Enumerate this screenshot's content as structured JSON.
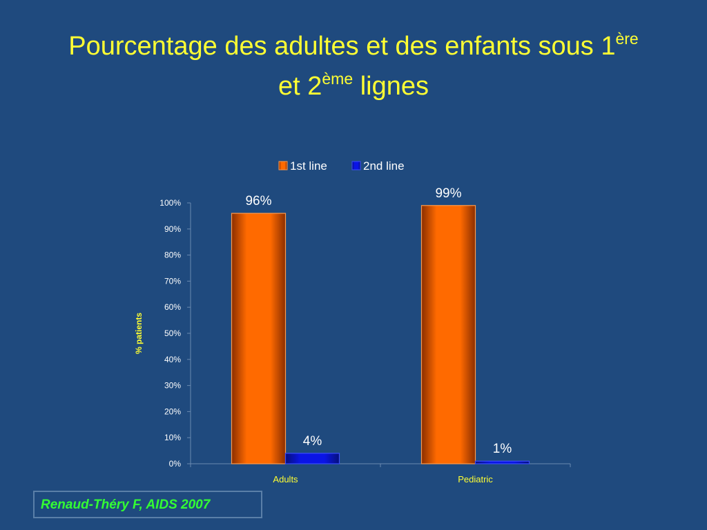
{
  "slide": {
    "title_part1": "Pourcentage des adultes et des enfants sous 1",
    "title_sup1": "ère",
    "title_part2": "et 2",
    "title_sup2": "ème",
    "title_part3": " lignes",
    "citation": "Renaud-Théry F, AIDS 2007"
  },
  "colors": {
    "background": "#1f4a7e",
    "title": "#ffff33",
    "citation": "#33ff33",
    "series_1st": "#ff6a00",
    "series_2nd": "#0a14e6",
    "axis_label": "#ffff33",
    "category_label": "#ffff33",
    "tick_label": "#ffffff"
  },
  "chart_data": {
    "type": "bar",
    "categories": [
      "Adults",
      "Pediatric"
    ],
    "series": [
      {
        "name": "1st line",
        "values": [
          96,
          99
        ],
        "labels": [
          "96%",
          "99%"
        ]
      },
      {
        "name": "2nd line",
        "values": [
          4,
          1
        ],
        "labels": [
          "4%",
          "1%"
        ]
      }
    ],
    "ylabel": "% patients",
    "ylim": [
      0,
      100
    ],
    "yticks": [
      "0%",
      "10%",
      "20%",
      "30%",
      "40%",
      "50%",
      "60%",
      "70%",
      "80%",
      "90%",
      "100%"
    ],
    "legend": "top",
    "grid": false
  }
}
